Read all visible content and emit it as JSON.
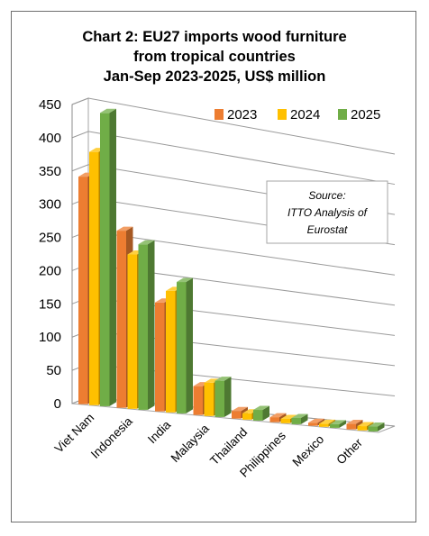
{
  "chart_data": {
    "type": "bar",
    "title_lines": [
      "Chart 2: EU27 imports wood furniture",
      "from tropical countries",
      "Jan-Sep 2023-2025, US$ million"
    ],
    "categories": [
      "Viet Nam",
      "Indonesia",
      "India",
      "Malaysia",
      "Thailand",
      "Philippines",
      "Mexico",
      "Other"
    ],
    "series": [
      {
        "name": "2023",
        "color": "#ED7D31",
        "values": [
          343,
          270,
          168,
          45,
          12,
          8,
          5,
          9
        ]
      },
      {
        "name": "2024",
        "color": "#FFC000",
        "values": [
          383,
          236,
          188,
          52,
          10,
          7,
          5,
          7
        ]
      },
      {
        "name": "2025",
        "color": "#70AD47",
        "values": [
          445,
          254,
          204,
          57,
          17,
          10,
          6,
          8
        ]
      }
    ],
    "yticks": [
      "0",
      "50",
      "100",
      "150",
      "200",
      "250",
      "300",
      "350",
      "400",
      "450"
    ],
    "ylim": [
      0,
      450
    ],
    "legend_position": "top-right",
    "note_lines": [
      "Source:",
      "ITTO Analysis of",
      "Eurostat"
    ],
    "grid": true
  }
}
